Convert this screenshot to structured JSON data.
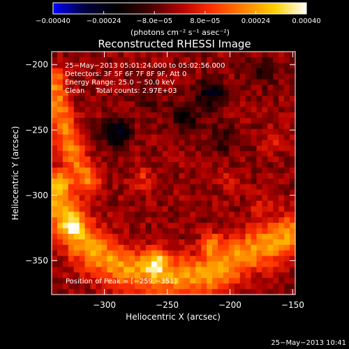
{
  "chart_data": {
    "type": "heatmap",
    "title": "Reconstructed RHESSI Image",
    "xlabel": "Heliocentric X (arcsec)",
    "ylabel": "Heliocentric Y (arcsec)",
    "xlim": [
      -342,
      -148
    ],
    "ylim": [
      -376,
      -190
    ],
    "x_ticks": [
      -300,
      -250,
      -200,
      -150
    ],
    "y_ticks": [
      -200,
      -250,
      -300,
      -350
    ],
    "x_tick_labels": [
      "−300",
      "−250",
      "−200",
      "−150"
    ],
    "y_tick_labels": [
      "−200",
      "−250",
      "−300",
      "−350"
    ],
    "colorbar": {
      "range": [
        -0.0004,
        0.0004
      ],
      "ticks": [
        -0.0004,
        -0.00024,
        -8e-05,
        8e-05,
        0.00024,
        0.0004
      ],
      "tick_labels": [
        "−0.00040",
        "−0.00024",
        "−8.0e−05",
        "8.0e−05",
        "0.00024",
        "0.00040"
      ],
      "unit_label": "(photons cm⁻² s⁻¹ asec⁻²)",
      "colors": [
        "#0000ff",
        "#000040",
        "#000000",
        "#400000",
        "#b00000",
        "#ff3000",
        "#ff8000",
        "#ffd000",
        "#ffffff"
      ]
    },
    "annotations": [
      "25−May−2013 05:01:24.000 to 05:02:56.000",
      "Detectors: 3F 5F 6F 7F 8F 9F, Att 0",
      "Energy Range: 25.0 − 50.0 keV",
      "Clean     Total counts: 2.97E+03"
    ],
    "peak_label": "Position of Peak = [−259,−351]",
    "peak_position": [
      -259,
      -351
    ],
    "features": {
      "background_value": -3e-05,
      "blue_patches": [
        {
          "x": -290,
          "y": -253,
          "value": -0.0003
        },
        {
          "x": -215,
          "y": -222,
          "value": -0.00028
        },
        {
          "x": -235,
          "y": -240,
          "value": -0.0002
        },
        {
          "x": -175,
          "y": -205,
          "value": -0.00016
        },
        {
          "x": -205,
          "y": -258,
          "value": -0.00014
        },
        {
          "x": -265,
          "y": -225,
          "value": -0.00012
        }
      ],
      "bright_band_points": [
        [
          -340,
          -300
        ],
        [
          -328,
          -322
        ],
        [
          -315,
          -338
        ],
        [
          -300,
          -348
        ],
        [
          -285,
          -355
        ],
        [
          -265,
          -360
        ],
        [
          -250,
          -362
        ],
        [
          -232,
          -362
        ],
        [
          -215,
          -360
        ],
        [
          -200,
          -352
        ],
        [
          -182,
          -342
        ],
        [
          -165,
          -335
        ],
        [
          -150,
          -330
        ]
      ],
      "left_edge_band_points": [
        [
          -340,
          -210
        ],
        [
          -335,
          -240
        ],
        [
          -325,
          -270
        ],
        [
          -312,
          -290
        ]
      ],
      "hot_spots": [
        {
          "x": -259,
          "y": -351,
          "value": 0.0004
        },
        {
          "x": -215,
          "y": -338,
          "value": 0.00034
        },
        {
          "x": -325,
          "y": -323,
          "value": 0.00032
        },
        {
          "x": -336,
          "y": -290,
          "value": 0.00026
        },
        {
          "x": -270,
          "y": -287,
          "value": 0.00018
        },
        {
          "x": -200,
          "y": -291,
          "value": 0.00016
        },
        {
          "x": -165,
          "y": -258,
          "value": 0.00018
        },
        {
          "x": -175,
          "y": -310,
          "value": 0.00014
        }
      ]
    }
  },
  "footer": {
    "timestamp": "25−May−2013 10:41"
  }
}
